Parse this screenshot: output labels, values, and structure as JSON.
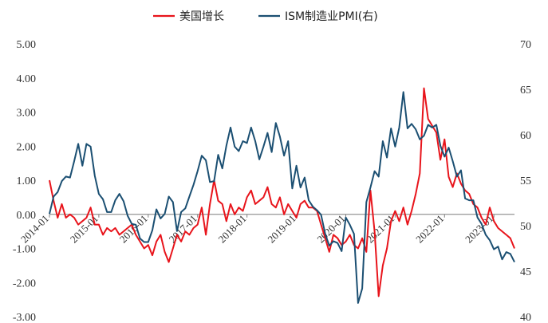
{
  "chart_data": {
    "type": "line",
    "title": "",
    "xlabel": "",
    "ylabel": "",
    "legend_position": "top-center",
    "grid": false,
    "y_left": {
      "range": [
        -3.0,
        5.0
      ],
      "ticks": [
        "5.00",
        "4.00",
        "3.00",
        "2.00",
        "1.00",
        "0.00",
        "-1.00",
        "-2.00",
        "-3.00"
      ]
    },
    "y_right": {
      "range": [
        40,
        70
      ],
      "ticks": [
        "70",
        "65",
        "60",
        "55",
        "50",
        "45",
        "40"
      ]
    },
    "x_ticks": [
      "2014-01",
      "2015-01",
      "2016-01",
      "2017-01",
      "2018-01",
      "2019-01",
      "2020-01",
      "2021-01",
      "2022-01",
      "2023-01"
    ],
    "x_range": [
      "2014-01",
      "2023-06"
    ],
    "series": [
      {
        "name": "美国增长",
        "axis": "left",
        "color": "#e8141b",
        "x": [
          "2014-01",
          "2014-02",
          "2014-03",
          "2014-04",
          "2014-05",
          "2014-06",
          "2014-07",
          "2014-08",
          "2014-09",
          "2014-10",
          "2014-11",
          "2014-12",
          "2015-01",
          "2015-02",
          "2015-03",
          "2015-04",
          "2015-05",
          "2015-06",
          "2015-07",
          "2015-08",
          "2015-09",
          "2015-10",
          "2015-11",
          "2015-12",
          "2016-01",
          "2016-02",
          "2016-03",
          "2016-04",
          "2016-05",
          "2016-06",
          "2016-07",
          "2016-08",
          "2016-09",
          "2016-10",
          "2016-11",
          "2016-12",
          "2017-01",
          "2017-02",
          "2017-03",
          "2017-04",
          "2017-05",
          "2017-06",
          "2017-07",
          "2017-08",
          "2017-09",
          "2017-10",
          "2017-11",
          "2017-12",
          "2018-01",
          "2018-02",
          "2018-03",
          "2018-04",
          "2018-05",
          "2018-06",
          "2018-07",
          "2018-08",
          "2018-09",
          "2018-10",
          "2018-11",
          "2018-12",
          "2019-01",
          "2019-02",
          "2019-03",
          "2019-04",
          "2019-05",
          "2019-06",
          "2019-07",
          "2019-08",
          "2019-09",
          "2019-10",
          "2019-11",
          "2019-12",
          "2020-01",
          "2020-02",
          "2020-03",
          "2020-04",
          "2020-05",
          "2020-06",
          "2020-07",
          "2020-08",
          "2020-09",
          "2020-10",
          "2020-11",
          "2020-12",
          "2021-01",
          "2021-02",
          "2021-03",
          "2021-04",
          "2021-05",
          "2021-06",
          "2021-07",
          "2021-08",
          "2021-09",
          "2021-10",
          "2021-11",
          "2021-12",
          "2022-01",
          "2022-02",
          "2022-03",
          "2022-04",
          "2022-05",
          "2022-06",
          "2022-07",
          "2022-08",
          "2022-09",
          "2022-10",
          "2022-11",
          "2022-12",
          "2023-01",
          "2023-02",
          "2023-03",
          "2023-04",
          "2023-05",
          "2023-06"
        ],
        "values": [
          1.0,
          0.4,
          -0.1,
          0.3,
          -0.1,
          0.0,
          -0.1,
          -0.3,
          -0.2,
          -0.1,
          0.2,
          -0.3,
          -0.3,
          -0.6,
          -0.4,
          -0.5,
          -0.4,
          -0.6,
          -0.5,
          -0.4,
          -0.3,
          -0.6,
          -0.8,
          -1.0,
          -0.9,
          -1.2,
          -0.8,
          -0.6,
          -1.1,
          -1.4,
          -1.0,
          -0.6,
          -0.8,
          -0.5,
          -0.6,
          -0.4,
          -0.3,
          0.2,
          -0.6,
          0.3,
          1.0,
          0.4,
          0.3,
          -0.2,
          0.3,
          0.0,
          0.2,
          0.1,
          0.5,
          0.7,
          0.3,
          0.4,
          0.5,
          0.8,
          0.3,
          0.2,
          0.5,
          0.0,
          0.3,
          0.1,
          -0.1,
          0.3,
          0.4,
          0.2,
          0.2,
          0.1,
          -0.3,
          -0.7,
          -1.1,
          -0.6,
          -0.7,
          -0.9,
          -0.8,
          -0.6,
          -0.9,
          -1.0,
          -0.7,
          -1.1,
          0.7,
          -0.5,
          -2.4,
          -1.5,
          -1.0,
          -0.2,
          0.1,
          -0.2,
          0.2,
          -0.3,
          0.1,
          0.6,
          1.2,
          3.7,
          2.8,
          2.6,
          2.4,
          1.6,
          2.2,
          1.1,
          0.8,
          1.2,
          0.9,
          0.7,
          0.6,
          0.3,
          0.2,
          -0.1,
          -0.3,
          0.2,
          -0.2,
          -0.4,
          -0.5,
          -0.6,
          -0.7,
          -1.0
        ]
      },
      {
        "name": "ISM制造业PMI(右)",
        "axis": "right",
        "color": "#1b4f72",
        "x": [
          "2014-01",
          "2014-02",
          "2014-03",
          "2014-04",
          "2014-05",
          "2014-06",
          "2014-07",
          "2014-08",
          "2014-09",
          "2014-10",
          "2014-11",
          "2014-12",
          "2015-01",
          "2015-02",
          "2015-03",
          "2015-04",
          "2015-05",
          "2015-06",
          "2015-07",
          "2015-08",
          "2015-09",
          "2015-10",
          "2015-11",
          "2015-12",
          "2016-01",
          "2016-02",
          "2016-03",
          "2016-04",
          "2016-05",
          "2016-06",
          "2016-07",
          "2016-08",
          "2016-09",
          "2016-10",
          "2016-11",
          "2016-12",
          "2017-01",
          "2017-02",
          "2017-03",
          "2017-04",
          "2017-05",
          "2017-06",
          "2017-07",
          "2017-08",
          "2017-09",
          "2017-10",
          "2017-11",
          "2017-12",
          "2018-01",
          "2018-02",
          "2018-03",
          "2018-04",
          "2018-05",
          "2018-06",
          "2018-07",
          "2018-08",
          "2018-09",
          "2018-10",
          "2018-11",
          "2018-12",
          "2019-01",
          "2019-02",
          "2019-03",
          "2019-04",
          "2019-05",
          "2019-06",
          "2019-07",
          "2019-08",
          "2019-09",
          "2019-10",
          "2019-11",
          "2019-12",
          "2020-01",
          "2020-02",
          "2020-03",
          "2020-04",
          "2020-05",
          "2020-06",
          "2020-07",
          "2020-08",
          "2020-09",
          "2020-10",
          "2020-11",
          "2020-12",
          "2021-01",
          "2021-02",
          "2021-03",
          "2021-04",
          "2021-05",
          "2021-06",
          "2021-07",
          "2021-08",
          "2021-09",
          "2021-10",
          "2021-11",
          "2021-12",
          "2022-01",
          "2022-02",
          "2022-03",
          "2022-04",
          "2022-05",
          "2022-06",
          "2022-07",
          "2022-08",
          "2022-09",
          "2022-10",
          "2022-11",
          "2022-12",
          "2023-01",
          "2023-02",
          "2023-03",
          "2023-04",
          "2023-05",
          "2023-06"
        ],
        "values": [
          51.3,
          53.2,
          53.7,
          54.9,
          55.4,
          55.3,
          57.1,
          59.0,
          56.6,
          59.0,
          58.7,
          55.5,
          53.5,
          52.9,
          51.5,
          51.5,
          52.8,
          53.5,
          52.7,
          51.1,
          50.2,
          50.1,
          48.6,
          48.2,
          48.2,
          49.5,
          51.8,
          50.8,
          51.3,
          53.2,
          52.6,
          49.4,
          51.5,
          51.9,
          53.2,
          54.5,
          56.0,
          57.7,
          57.2,
          54.8,
          54.9,
          57.8,
          56.3,
          58.8,
          60.8,
          58.7,
          58.2,
          59.3,
          59.1,
          60.8,
          59.3,
          57.3,
          58.7,
          60.2,
          58.1,
          61.3,
          59.8,
          57.7,
          59.3,
          54.1,
          56.6,
          54.2,
          55.3,
          52.8,
          52.1,
          51.7,
          51.2,
          49.1,
          47.8,
          48.3,
          48.1,
          47.2,
          50.9,
          50.1,
          49.1,
          41.5,
          43.1,
          52.6,
          54.2,
          56.0,
          55.4,
          59.3,
          57.5,
          60.7,
          58.7,
          60.8,
          64.7,
          60.7,
          61.2,
          60.6,
          59.5,
          59.9,
          61.1,
          60.8,
          61.1,
          58.8,
          57.6,
          58.6,
          57.1,
          55.4,
          56.1,
          53.0,
          52.8,
          52.8,
          50.9,
          50.2,
          49.0,
          48.4,
          47.4,
          47.7,
          46.3,
          47.1,
          46.9,
          46.0
        ]
      }
    ]
  }
}
